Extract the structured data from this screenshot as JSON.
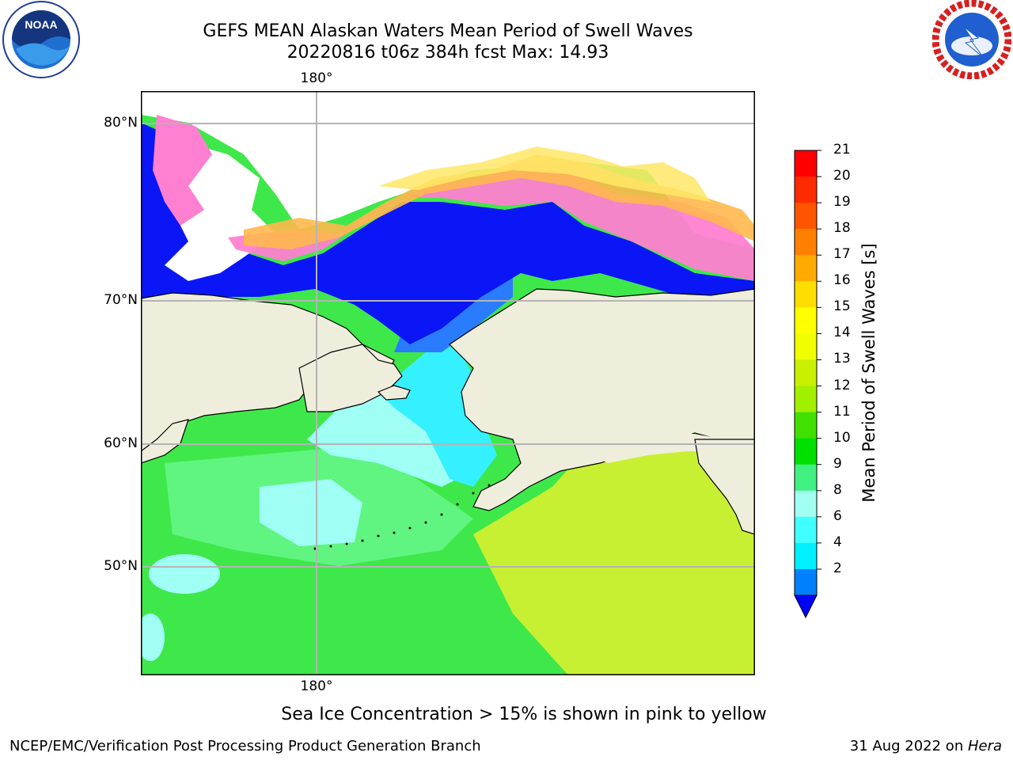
{
  "title": {
    "line1": "GEFS MEAN Alaskan Waters Mean Period of Swell Waves",
    "line2": "20220816 t06z 384h fcst   Max: 14.93"
  },
  "map": {
    "lat_ticks": [
      "80°N",
      "70°N",
      "60°N",
      "50°N"
    ],
    "lon_tick_top": "180°",
    "lon_tick_bottom": "180°",
    "colors": {
      "land": "#efeedc",
      "ice_white": "#ffffff",
      "ice_pink": "#ff7fd0",
      "ice_orange": "#ffb84d",
      "ice_yellow": "#ffe866",
      "deep_blue": "#0a16f5",
      "mid_blue": "#2a7cff",
      "cyan": "#35f0ff",
      "light_cyan": "#a0fff5",
      "green": "#3ee84a",
      "light_green": "#60f580",
      "yellow_green": "#c8f032",
      "gridline": "#b4b4b4"
    }
  },
  "colorbar": {
    "label": "Mean Period of Swell Waves [s]",
    "ticks": [
      "21",
      "20",
      "19",
      "18",
      "17",
      "16",
      "15",
      "14",
      "13",
      "12",
      "11",
      "10",
      "9",
      "8",
      "6",
      "4",
      "2"
    ],
    "colors": [
      "#ff0000",
      "#ff2a00",
      "#ff5500",
      "#ff8000",
      "#ffaa00",
      "#ffdd00",
      "#ffff00",
      "#f0ff00",
      "#c8f000",
      "#a0f000",
      "#40e000",
      "#00e000",
      "#40f080",
      "#a0fff0",
      "#40ffff",
      "#00f0ff",
      "#0080ff"
    ],
    "extend_color": "#0000ff"
  },
  "ice_note": "Sea Ice Concentration > 15% is shown in pink to yellow",
  "footer": {
    "left": "NCEP/EMC/Verification Post Processing Product Generation Branch",
    "right_prefix": "31 Aug 2022 on ",
    "right_host": "Hera"
  },
  "logos": {
    "noaa_icon": "noaa-logo",
    "noaa_text": "NOAA",
    "nws_icon": "nws-logo"
  }
}
